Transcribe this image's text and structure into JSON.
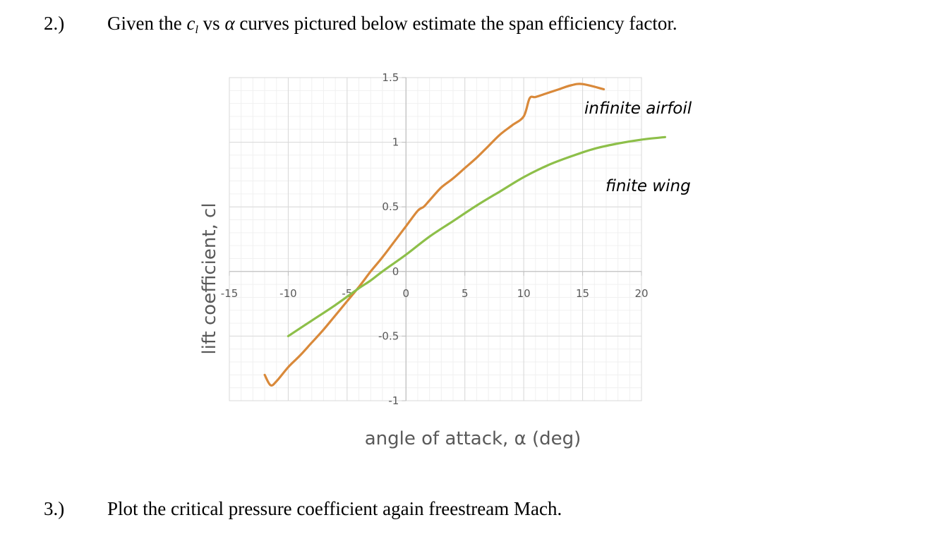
{
  "question2": {
    "number": "2.)",
    "text_before": "Given the ",
    "symbol_c": "c",
    "symbol_sub": "l",
    "text_mid": " vs ",
    "symbol_alpha": "α",
    "text_after": " curves pictured below estimate the span efficiency factor."
  },
  "question3": {
    "number": "3.)",
    "text": "Plot the critical pressure coefficient again freestream Mach."
  },
  "chart_data": {
    "type": "line",
    "xlabel": "angle of attack, α (deg)",
    "ylabel": "lift coefficient, cl",
    "xlim": [
      -15,
      20
    ],
    "ylim": [
      -1,
      1.5
    ],
    "x_ticks": [
      "-15",
      "-10",
      "-5",
      "0",
      "5",
      "10",
      "15",
      "20"
    ],
    "y_ticks": [
      "1.5",
      "1",
      "0.5",
      "0",
      "-0.5",
      "-1"
    ],
    "grid": true,
    "series": [
      {
        "name": "infinite airfoil",
        "color": "#D9893A",
        "x": [
          -12,
          -11.5,
          -11,
          -10,
          -9,
          -8,
          -7,
          -6,
          -5,
          -4,
          -3,
          -2,
          -1,
          0,
          1,
          1.5,
          2,
          3,
          4,
          5,
          6,
          7,
          8,
          9,
          10,
          10.5,
          11,
          12,
          13,
          14,
          15,
          16.8
        ],
        "y": [
          -0.8,
          -0.88,
          -0.85,
          -0.74,
          -0.65,
          -0.55,
          -0.45,
          -0.34,
          -0.23,
          -0.12,
          0.0,
          0.11,
          0.23,
          0.35,
          0.47,
          0.5,
          0.55,
          0.65,
          0.72,
          0.8,
          0.88,
          0.97,
          1.06,
          1.13,
          1.2,
          1.34,
          1.35,
          1.38,
          1.41,
          1.44,
          1.45,
          1.41
        ]
      },
      {
        "name": "finite wing",
        "color": "#8DBF49",
        "x": [
          -10,
          -8,
          -6,
          -4,
          -3,
          -2,
          0,
          2,
          4,
          6,
          8,
          10,
          12,
          14,
          16,
          18,
          20,
          22
        ],
        "y": [
          -0.5,
          -0.38,
          -0.26,
          -0.13,
          -0.07,
          0.0,
          0.13,
          0.27,
          0.39,
          0.51,
          0.62,
          0.73,
          0.82,
          0.89,
          0.95,
          0.99,
          1.02,
          1.04
        ]
      }
    ],
    "annotations": [
      "infinite airfoil",
      "finite wing"
    ]
  }
}
